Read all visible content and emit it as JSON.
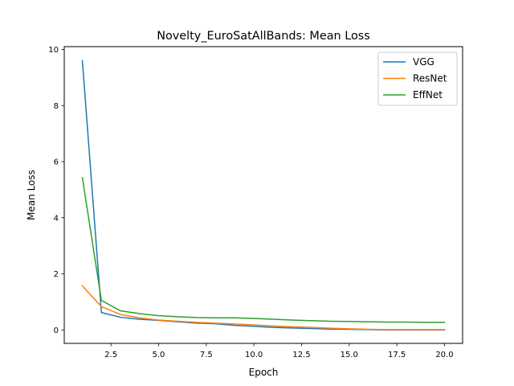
{
  "chart_data": {
    "type": "line",
    "title": "Novelty_EuroSatAllBands: Mean Loss",
    "xlabel": "Epoch",
    "ylabel": "Mean Loss",
    "xlim": [
      0.05,
      20.95
    ],
    "ylim": [
      -0.48,
      10.1
    ],
    "xticks": [
      2.5,
      5.0,
      7.5,
      10.0,
      12.5,
      15.0,
      17.5,
      20.0
    ],
    "xtick_labels": [
      "2.5",
      "5.0",
      "7.5",
      "10.0",
      "12.5",
      "15.0",
      "17.5",
      "20.0"
    ],
    "yticks": [
      0,
      2,
      4,
      6,
      8,
      10
    ],
    "ytick_labels": [
      "0",
      "2",
      "4",
      "6",
      "8",
      "10"
    ],
    "grid": false,
    "legend_position": "upper right",
    "x": [
      1,
      2,
      3,
      4,
      5,
      6,
      7,
      8,
      9,
      10,
      11,
      12,
      13,
      14,
      15,
      16,
      17,
      18,
      19,
      20
    ],
    "series": [
      {
        "name": "VGG",
        "color": "#1f77b4",
        "values": [
          9.6,
          0.62,
          0.45,
          0.38,
          0.34,
          0.29,
          0.24,
          0.22,
          0.16,
          0.13,
          0.09,
          0.07,
          0.05,
          0.03,
          0.02,
          0.01,
          0.0,
          0.0,
          0.0,
          0.0
        ]
      },
      {
        "name": "ResNet",
        "color": "#ff7f0e",
        "values": [
          1.57,
          0.83,
          0.55,
          0.43,
          0.35,
          0.31,
          0.27,
          0.24,
          0.21,
          0.18,
          0.14,
          0.11,
          0.09,
          0.06,
          0.04,
          0.02,
          0.01,
          0.01,
          0.01,
          0.01
        ]
      },
      {
        "name": "EffNet",
        "color": "#2ca02c",
        "values": [
          5.43,
          1.05,
          0.68,
          0.58,
          0.51,
          0.47,
          0.44,
          0.43,
          0.43,
          0.41,
          0.38,
          0.35,
          0.33,
          0.31,
          0.3,
          0.29,
          0.28,
          0.28,
          0.27,
          0.27
        ]
      }
    ]
  }
}
